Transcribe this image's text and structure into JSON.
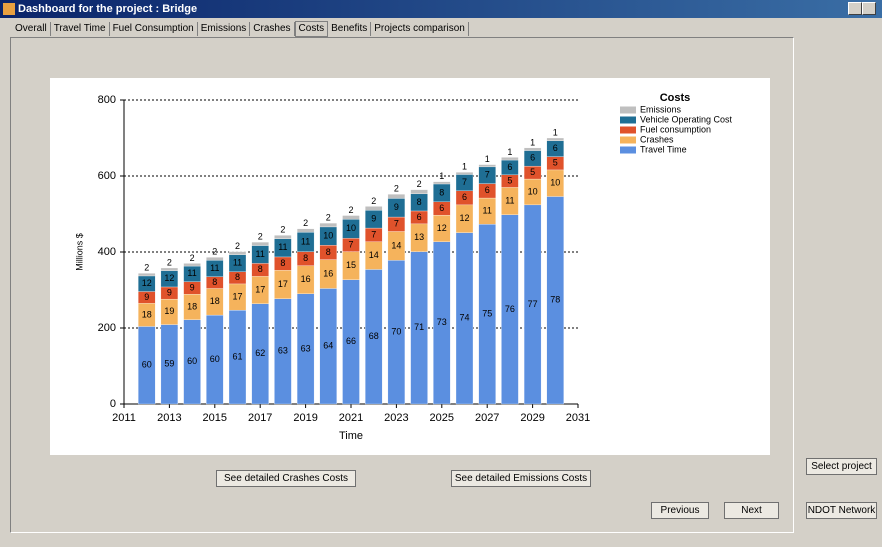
{
  "window": {
    "title": "Dashboard for the project : Bridge"
  },
  "tabs": [
    "Overall",
    "Travel Time",
    "Fuel Consumption",
    "Emissions",
    "Crashes",
    "Costs",
    "Benefits",
    "Projects comparison"
  ],
  "selected_tab": 5,
  "chart_data": {
    "type": "bar",
    "stacked": true,
    "xlabel": "Time",
    "ylabel": "Millions $",
    "legend_title": "Costs",
    "x": [
      2012,
      2013,
      2014,
      2015,
      2016,
      2017,
      2018,
      2019,
      2020,
      2021,
      2022,
      2023,
      2024,
      2025,
      2026,
      2027,
      2028,
      2029,
      2030
    ],
    "xlim": [
      2011,
      2031
    ],
    "xticks": [
      2011,
      2013,
      2015,
      2017,
      2019,
      2021,
      2023,
      2025,
      2027,
      2029,
      2031
    ],
    "ylim": [
      0,
      800
    ],
    "yticks": [
      0,
      200,
      400,
      600,
      800
    ],
    "grid": true,
    "series": [
      {
        "name": "Travel Time",
        "color": "#5b8fe0",
        "label_color": "#ffffff",
        "values": [
          204,
          209,
          222,
          234,
          247,
          264,
          277,
          290,
          304,
          327,
          354,
          378,
          401,
          427,
          451,
          473,
          498,
          524,
          546
        ],
        "shares": [
          60,
          59,
          60,
          60,
          61,
          62,
          63,
          63,
          64,
          66,
          68,
          70,
          71,
          73,
          74,
          75,
          76,
          77,
          78
        ]
      },
      {
        "name": "Crashes",
        "color": "#f5b35c",
        "label_color": "#222222",
        "values": [
          61,
          67,
          67,
          70,
          69,
          72,
          75,
          74,
          76,
          74,
          73,
          76,
          73,
          70,
          73,
          69,
          72,
          68,
          70
        ],
        "shares": [
          18,
          19,
          18,
          18,
          17,
          17,
          17,
          16,
          16,
          15,
          14,
          14,
          13,
          12,
          12,
          11,
          11,
          10,
          10
        ]
      },
      {
        "name": "Fuel consumption",
        "color": "#e0522b",
        "label_color": "#222222",
        "values": [
          31,
          32,
          33,
          31,
          32,
          34,
          35,
          37,
          38,
          35,
          36,
          38,
          34,
          35,
          37,
          38,
          33,
          34,
          35
        ],
        "shares": [
          9,
          9,
          9,
          8,
          8,
          8,
          8,
          8,
          8,
          7,
          7,
          7,
          6,
          6,
          6,
          6,
          5,
          5,
          5
        ]
      },
      {
        "name": "Vehicle Operating Cost",
        "color": "#1f6e94",
        "label_color": "#ffffff",
        "values": [
          41,
          43,
          41,
          43,
          45,
          47,
          48,
          51,
          48,
          50,
          47,
          49,
          45,
          47,
          43,
          44,
          39,
          41,
          42
        ],
        "shares": [
          12,
          12,
          11,
          11,
          11,
          11,
          11,
          11,
          10,
          10,
          9,
          9,
          8,
          8,
          7,
          7,
          6,
          6,
          6
        ]
      },
      {
        "name": "Emissions",
        "color": "#bfbfbf",
        "label_color": "#222222",
        "values": [
          7,
          7,
          7,
          8,
          8,
          9,
          9,
          9,
          10,
          10,
          10,
          11,
          11,
          6,
          6,
          6,
          7,
          7,
          7
        ],
        "shares": [
          2,
          2,
          2,
          2,
          2,
          2,
          2,
          2,
          2,
          2,
          2,
          2,
          2,
          1,
          1,
          1,
          1,
          1,
          1
        ]
      }
    ]
  },
  "buttons": {
    "crashes": "See detailed Crashes Costs",
    "emissions": "See detailed Emissions Costs",
    "previous": "Previous",
    "next": "Next",
    "select": "Select project",
    "network": "NDOT Network"
  }
}
